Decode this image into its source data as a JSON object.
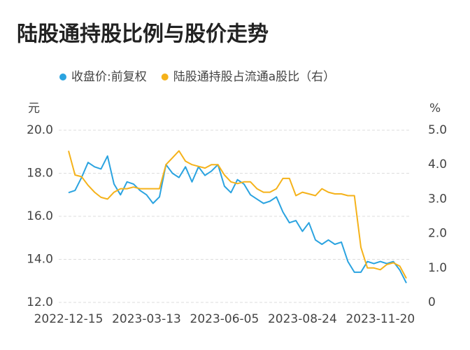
{
  "chart_data": {
    "type": "line",
    "title": "陆股通持股比例与股价走势",
    "y_label": "元",
    "y2_label": "%",
    "categories": [
      "2022-12-15",
      null,
      null,
      null,
      null,
      null,
      null,
      null,
      null,
      null,
      null,
      null,
      "2023-03-13",
      null,
      null,
      null,
      null,
      null,
      null,
      null,
      null,
      null,
      null,
      null,
      "2023-06-05",
      null,
      null,
      null,
      null,
      null,
      null,
      null,
      null,
      null,
      null,
      null,
      "2023-08-24",
      null,
      null,
      null,
      null,
      null,
      null,
      null,
      null,
      null,
      null,
      null,
      "2023-11-20",
      null,
      null,
      null,
      null
    ],
    "series": [
      {
        "name": "收盘价:前复权",
        "color": "#2aa3e0",
        "axis": "y",
        "values": [
          17.1,
          17.2,
          17.8,
          18.5,
          18.3,
          18.2,
          18.8,
          17.5,
          17.0,
          17.6,
          17.5,
          17.2,
          17.0,
          16.6,
          16.9,
          18.4,
          18.0,
          17.8,
          18.3,
          17.6,
          18.3,
          17.9,
          18.1,
          18.4,
          17.4,
          17.1,
          17.7,
          17.5,
          17.0,
          16.8,
          16.6,
          16.7,
          16.9,
          16.2,
          15.7,
          15.8,
          15.3,
          15.7,
          14.9,
          14.7,
          14.9,
          14.7,
          14.8,
          13.9,
          13.4,
          13.4,
          13.9,
          13.8,
          13.9,
          13.8,
          13.9,
          13.5,
          12.9
        ]
      },
      {
        "name": "陆股通持股占流通a股比（右）",
        "color": "#f5b21a",
        "axis": "y2",
        "values": [
          4.4,
          3.7,
          3.65,
          3.4,
          3.2,
          3.05,
          3.0,
          3.2,
          3.3,
          3.3,
          3.35,
          3.3,
          3.3,
          3.3,
          3.3,
          4.0,
          4.2,
          4.4,
          4.1,
          4.0,
          3.95,
          3.9,
          4.0,
          4.0,
          3.7,
          3.5,
          3.45,
          3.5,
          3.5,
          3.3,
          3.2,
          3.2,
          3.3,
          3.6,
          3.6,
          3.1,
          3.2,
          3.15,
          3.1,
          3.3,
          3.2,
          3.15,
          3.15,
          3.1,
          3.1,
          1.6,
          1.0,
          1.0,
          0.95,
          1.1,
          1.15,
          1.05,
          0.7
        ]
      }
    ],
    "ylim": [
      12,
      20
    ],
    "yticks": [
      {
        "value": 12,
        "label": "12.0"
      },
      {
        "value": 14,
        "label": "14.0"
      },
      {
        "value": 16,
        "label": "16.0"
      },
      {
        "value": 18,
        "label": "18.0"
      },
      {
        "value": 20,
        "label": "20.0"
      }
    ],
    "y2lim": [
      0,
      5
    ],
    "y2ticks": [
      0,
      {
        "value": 1,
        "label": "1.0"
      },
      {
        "value": 2,
        "label": "2.0"
      },
      {
        "value": 3,
        "label": "3.0"
      },
      {
        "value": 4,
        "label": "4.0"
      },
      {
        "value": 5,
        "label": "5.0"
      }
    ],
    "grid": true,
    "legend": "top"
  }
}
